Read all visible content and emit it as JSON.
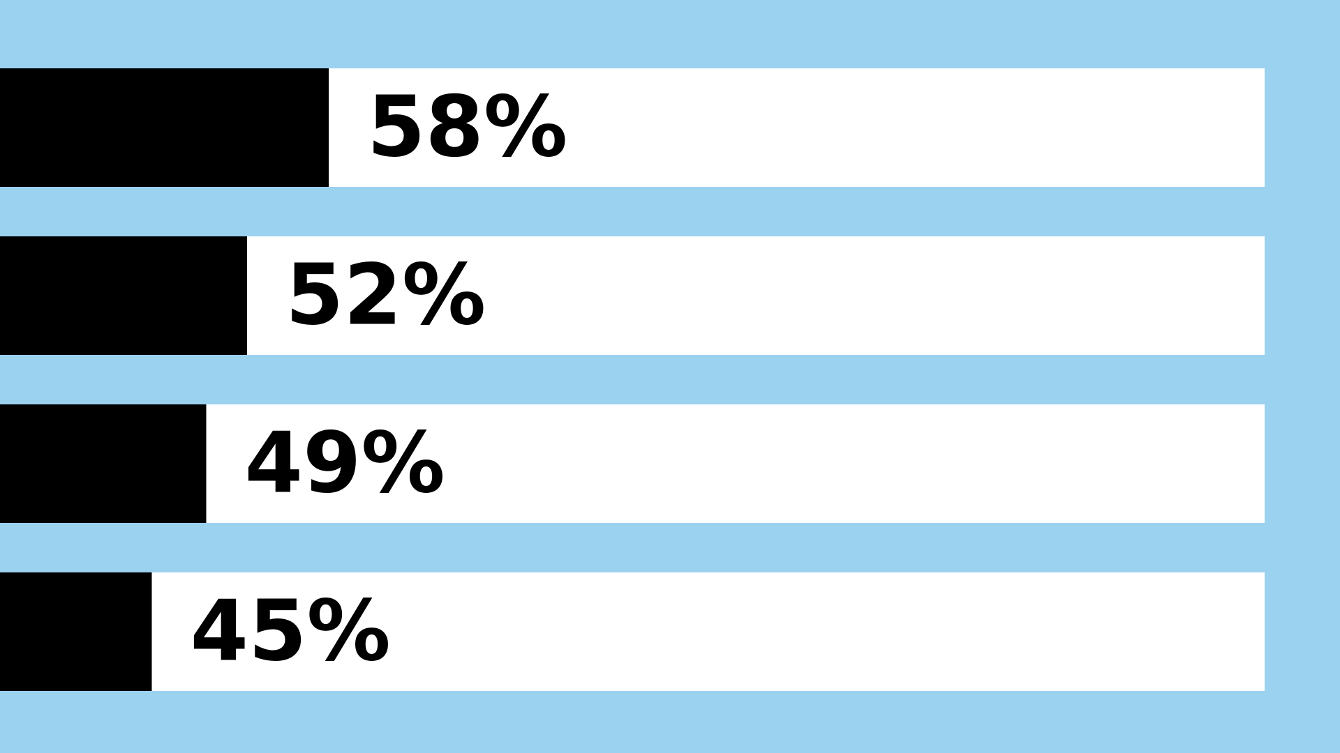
{
  "colors": {
    "background": "#9bd2ef",
    "track": "#ffffff",
    "bar": "#000000",
    "label": "#000000"
  },
  "chart_data": {
    "type": "bar",
    "orientation": "horizontal",
    "values": [
      58,
      52,
      49,
      45
    ],
    "data_labels": [
      "58%",
      "52%",
      "49%",
      "45%"
    ],
    "xlim": [
      0,
      100
    ],
    "grid": false,
    "legend": "none"
  }
}
